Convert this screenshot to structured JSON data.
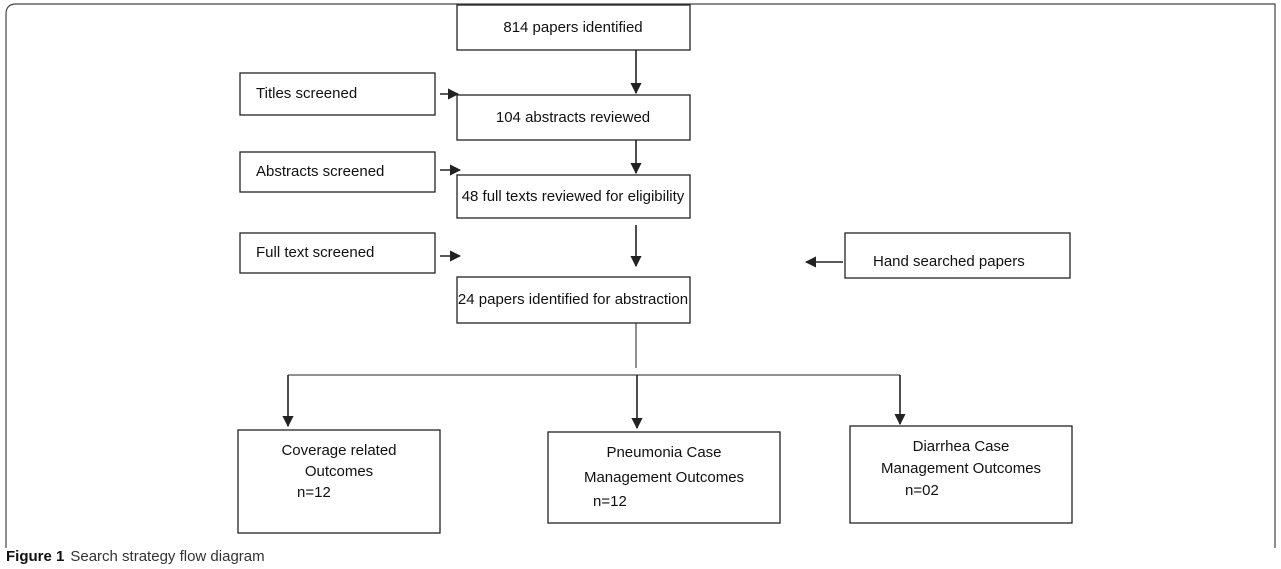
{
  "nodes": [
    {
      "label": "814 papers identified"
    },
    {
      "label": "104 abstracts reviewed"
    },
    {
      "label": "48 full texts reviewed for eligibility"
    },
    {
      "label": "24 papers identified for abstraction"
    },
    {
      "label": "Titles screened"
    },
    {
      "label": "Abstracts screened"
    },
    {
      "label": "Full text screened"
    },
    {
      "label": "Hand searched papers"
    },
    {
      "lines": [
        "Coverage related",
        "Outcomes",
        "n=12"
      ]
    },
    {
      "lines": [
        "Pneumonia Case",
        "Management Outcomes",
        "n=12"
      ]
    },
    {
      "lines": [
        "Diarrhea Case",
        "Management Outcomes",
        "n=02"
      ]
    }
  ],
  "caption": {
    "label": "Figure 1",
    "text": "Search strategy flow diagram"
  }
}
